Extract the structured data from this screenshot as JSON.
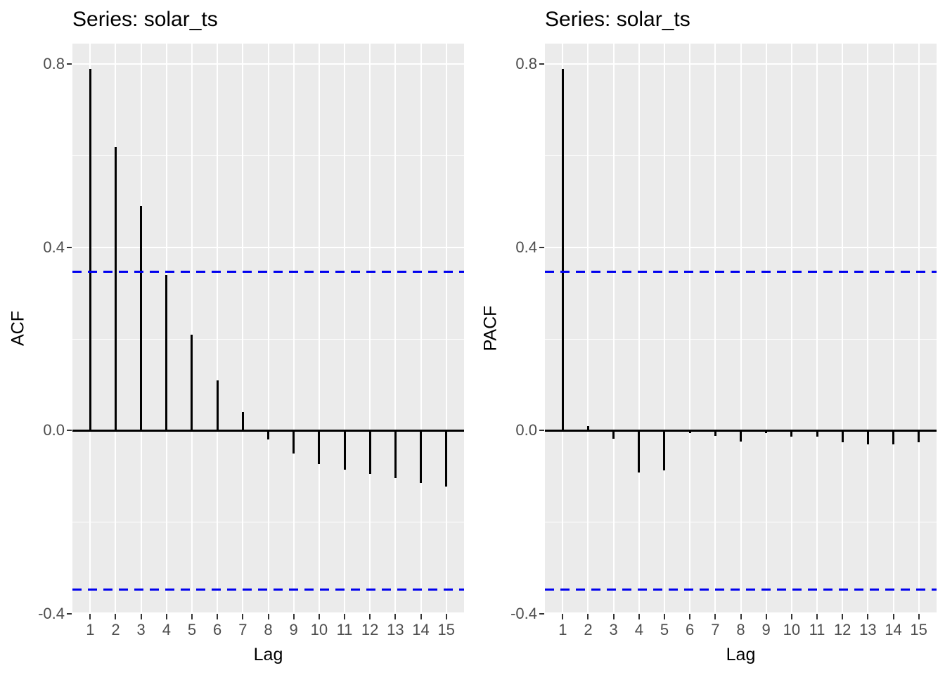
{
  "figure": {
    "background": "#FFFFFF",
    "colors": {
      "panel_bg": "#EBEBEB",
      "grid": "#FFFFFF",
      "axis_text": "#4D4D4D",
      "tick_mark": "#333333",
      "title_text": "#000000",
      "bar": "#000000",
      "ci_line": "#0000EE"
    }
  },
  "chart_data": [
    {
      "type": "bar",
      "subtype": "acf-lollipop",
      "title": "Series: solar_ts",
      "xlabel": "Lag",
      "ylabel": "ACF",
      "x": [
        1,
        2,
        3,
        4,
        5,
        6,
        7,
        8,
        9,
        10,
        11,
        12,
        13,
        14,
        15
      ],
      "xtick_labels": [
        "1",
        "2",
        "3",
        "4",
        "5",
        "6",
        "7",
        "8",
        "9",
        "10",
        "11",
        "12",
        "13",
        "14",
        "15"
      ],
      "values": [
        0.79,
        0.62,
        0.49,
        0.34,
        0.21,
        0.11,
        0.04,
        -0.02,
        -0.05,
        -0.073,
        -0.085,
        -0.094,
        -0.104,
        -0.114,
        -0.122
      ],
      "conf_interval": 0.347,
      "ci_style": "dashed",
      "ylim": [
        -0.4,
        0.845
      ],
      "yticks": [
        0.8,
        0.4,
        0.0,
        -0.4
      ],
      "ytick_labels": [
        "0.8",
        "0.4",
        "0.0",
        "-0.4"
      ],
      "yticks_minor": [
        0.6,
        0.2,
        -0.2
      ],
      "grid": "on",
      "legend": "none"
    },
    {
      "type": "bar",
      "subtype": "acf-lollipop",
      "title": "Series: solar_ts",
      "xlabel": "Lag",
      "ylabel": "PACF",
      "x": [
        1,
        2,
        3,
        4,
        5,
        6,
        7,
        8,
        9,
        10,
        11,
        12,
        13,
        14,
        15
      ],
      "xtick_labels": [
        "1",
        "2",
        "3",
        "4",
        "5",
        "6",
        "7",
        "8",
        "9",
        "10",
        "11",
        "12",
        "13",
        "14",
        "15"
      ],
      "values": [
        0.79,
        0.01,
        -0.018,
        -0.092,
        -0.087,
        -0.005,
        -0.012,
        -0.024,
        -0.005,
        -0.013,
        -0.013,
        -0.026,
        -0.03,
        -0.03,
        -0.026
      ],
      "conf_interval": 0.347,
      "ci_style": "dashed",
      "ylim": [
        -0.4,
        0.845
      ],
      "yticks": [
        0.8,
        0.4,
        0.0,
        -0.4
      ],
      "ytick_labels": [
        "0.8",
        "0.4",
        "0.0",
        "-0.4"
      ],
      "yticks_minor": [
        0.6,
        0.2,
        -0.2
      ],
      "grid": "on",
      "legend": "none"
    }
  ]
}
